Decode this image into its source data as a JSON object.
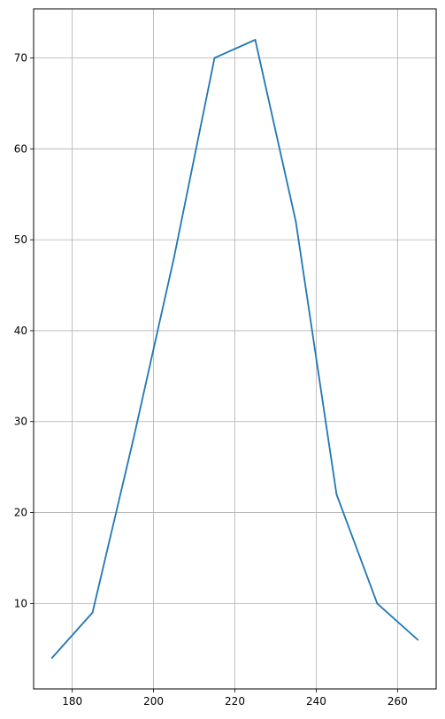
{
  "chart_data": {
    "type": "line",
    "title": "",
    "xlabel": "",
    "ylabel": "",
    "grid": true,
    "xlim": [
      170.5,
      269.5
    ],
    "ylim": [
      0.6,
      75.4
    ],
    "x_ticks": [
      180,
      200,
      220,
      240,
      260
    ],
    "y_ticks": [
      10,
      20,
      30,
      40,
      50,
      60,
      70
    ],
    "series": [
      {
        "x": [
          175,
          185,
          195,
          205,
          215,
          225,
          235,
          245,
          255,
          265
        ],
        "y": [
          4,
          9,
          28,
          48,
          70,
          72,
          52,
          22,
          10,
          6
        ],
        "color": "#1f77b4"
      }
    ]
  }
}
